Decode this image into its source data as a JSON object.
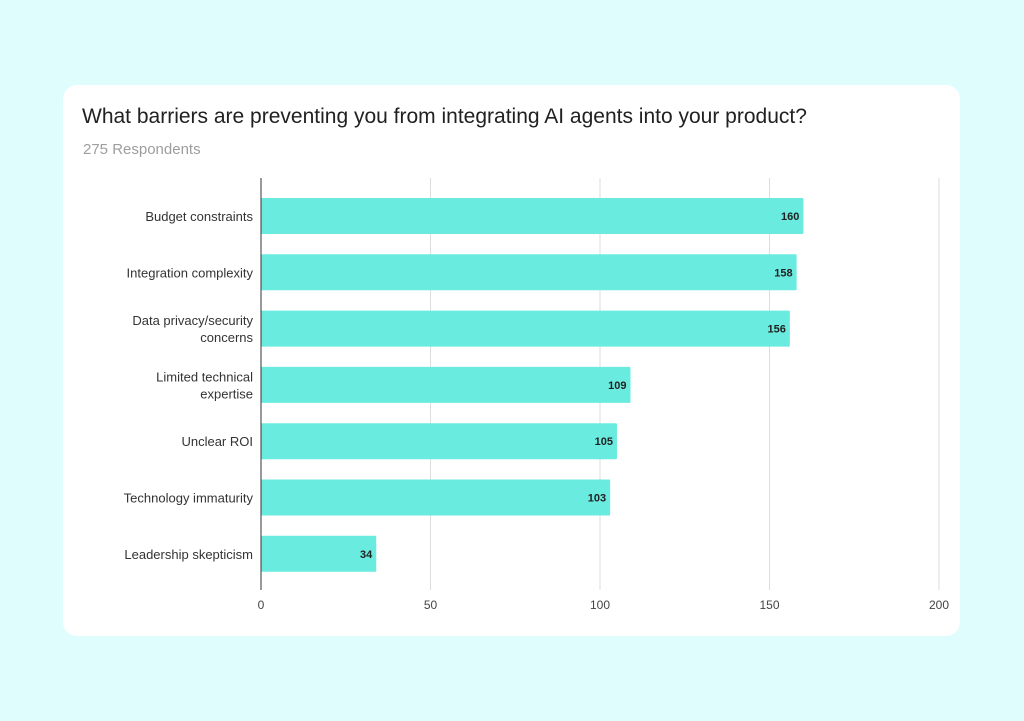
{
  "chart_data": {
    "type": "bar",
    "orientation": "horizontal",
    "title": "What barriers are preventing you from integrating AI agents into your product?",
    "subtitle": "275 Respondents",
    "categories": [
      [
        "Budget constraints"
      ],
      [
        "Integration complexity"
      ],
      [
        "Data privacy/security",
        "concerns"
      ],
      [
        "Limited technical",
        "expertise"
      ],
      [
        "Unclear ROI"
      ],
      [
        "Technology immaturity"
      ],
      [
        "Leadership skepticism"
      ]
    ],
    "values": [
      160,
      158,
      156,
      109,
      105,
      103,
      34
    ],
    "xlim": [
      0,
      200
    ],
    "xticks": [
      0,
      50,
      100,
      150,
      200
    ],
    "grid": true,
    "data_labels": true,
    "colors": {
      "bar": "#6aebdf",
      "background": "#e0fdfd",
      "grid": "#dddddd",
      "axis": "#333333"
    }
  }
}
